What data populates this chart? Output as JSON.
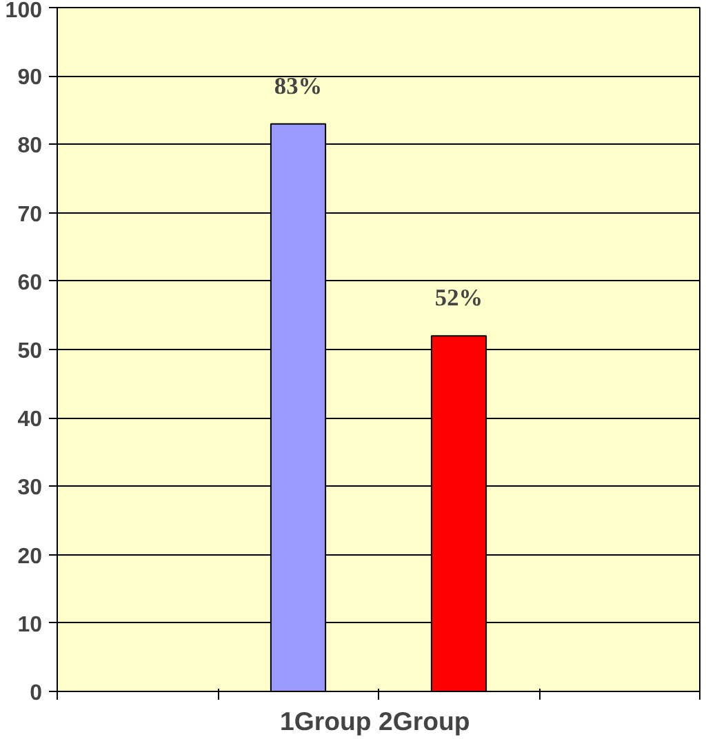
{
  "chart_data": {
    "type": "bar",
    "xlabel": "1Group  2Group",
    "categories": [
      null,
      null,
      null,
      null
    ],
    "values": [
      null,
      83,
      52,
      null
    ],
    "colors": [
      "#9999ff",
      "#9999ff",
      "#ff0000",
      "#ff0000"
    ],
    "value_labels": [
      null,
      "83%",
      "52%",
      null
    ],
    "ylim": [
      0,
      100
    ],
    "yticks": [
      0,
      10,
      20,
      30,
      40,
      50,
      60,
      70,
      80,
      90,
      100
    ],
    "grid": "y"
  }
}
